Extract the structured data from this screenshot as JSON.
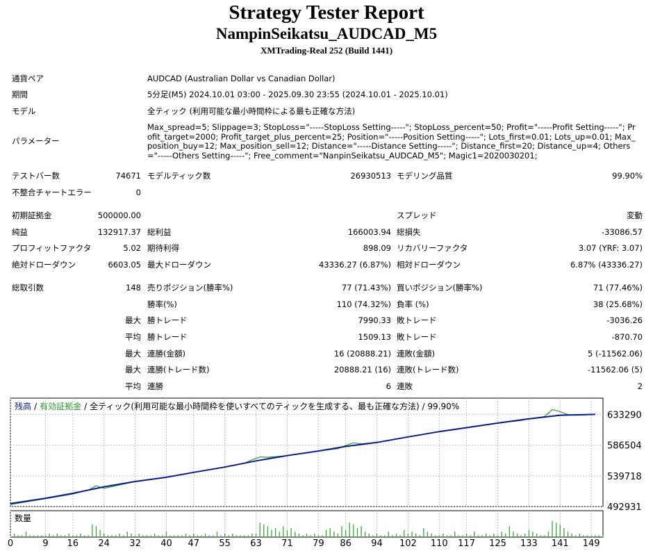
{
  "header": {
    "title": "Strategy Tester Report",
    "subtitle": "NampinSeikatsu_AUDCAD_M5",
    "server": "XMTrading-Real 252 (Build 1441)"
  },
  "info": {
    "symbol_label": "通貨ペア",
    "symbol_value": "AUDCAD (Australian Dollar vs Canadian Dollar)",
    "period_label": "期間",
    "period_value": "5分足(M5) 2024.10.01 03:00 - 2025.09.30 23:55 (2024.10.01 - 2025.10.01)",
    "model_label": "モデル",
    "model_value": "全ティック (利用可能な最小時間枠による最も正確な方法)",
    "params_label": "パラメーター",
    "params_value": "Max_spread=5; Slippage=3; StopLoss=\"-----StopLoss Setting-----\"; StopLoss_percent=50; Profit=\"-----Profit Setting-----\"; Profit_target=2000; Profit_target_plus_percent=25; Position=\"-----Position Setting-----\"; Lots_first=0.01; Lots_up=0.01; Max_position_buy=12; Max_position_sell=12; Distance=\"-----Distance Setting-----\"; Distance_first=20; Distance_up=4; Others=\"-----Others Setting-----\"; Free_comment=\"NanpinSeikatsu_AUDCAD_M5\"; Magic1=2020030201;"
  },
  "stats": {
    "bars_label": "テストバー数",
    "bars_value": "74671",
    "ticks_label": "モデルティック数",
    "ticks_value": "26930513",
    "quality_label": "モデリング品質",
    "quality_value": "99.90%",
    "mismatch_label": "不整合チャートエラー",
    "mismatch_value": "0",
    "deposit_label": "初期証拠金",
    "deposit_value": "500000.00",
    "spread_label": "スプレッド",
    "spread_value": "変動",
    "net_label": "純益",
    "net_value": "132917.37",
    "gross_profit_label": "総利益",
    "gross_profit_value": "166003.94",
    "gross_loss_label": "総損失",
    "gross_loss_value": "-33086.57",
    "pf_label": "プロフィットファクタ",
    "pf_value": "5.02",
    "expected_label": "期待利得",
    "expected_value": "898.09",
    "recovery_label": "リカバリーファクタ",
    "recovery_value": "3.07 (YRF: 3.07)",
    "abs_dd_label": "絶対ドローダウン",
    "abs_dd_value": "6603.05",
    "max_dd_label": "最大ドローダウン",
    "max_dd_value": "43336.27 (6.87%)",
    "rel_dd_label": "相対ドローダウン",
    "rel_dd_value": "6.87% (43336.27)",
    "trades_label": "総取引数",
    "trades_value": "148",
    "short_label": "売りポジション(勝率%)",
    "short_value": "77 (71.43%)",
    "long_label": "買いポジション(勝率%)",
    "long_value": "71 (77.46%)",
    "winrate_label": "勝率(%)",
    "winrate_value": "110 (74.32%)",
    "lossrate_label": "負率 (%)",
    "lossrate_value": "38 (25.68%)",
    "max1": "最大",
    "largest_win_label": "勝トレード",
    "largest_win_value": "7990.33",
    "largest_loss_label": "敗トレード",
    "largest_loss_value": "-3036.26",
    "avg1": "平均",
    "avg_win_label": "勝トレード",
    "avg_win_value": "1509.13",
    "avg_loss_label": "敗トレード",
    "avg_loss_value": "-870.70",
    "max2": "最大",
    "consec_win_amt_label": "連勝(金額)",
    "consec_win_amt_value": "16 (20888.21)",
    "consec_loss_amt_label": "連敗(金額)",
    "consec_loss_amt_value": "5 (-11562.06)",
    "max3": "最大",
    "consec_win_trades_label": "連勝(トレード数)",
    "consec_win_trades_value": "20888.21 (16)",
    "consec_loss_trades_label": "連敗(トレード数)",
    "consec_loss_trades_value": "-11562.06 (5)",
    "avg2": "平均",
    "avg_consec_win_label": "連勝",
    "avg_consec_win_value": "6",
    "avg_consec_loss_label": "連敗",
    "avg_consec_loss_value": "2"
  },
  "chart_data": {
    "type": "line",
    "legend": {
      "balance": "残高",
      "sep1": "/",
      "equity": "有効証拠金",
      "sep2": "/",
      "model": "全ティック(利用可能な最小時間枠を使いすべてのティックを生成する、最も正確な方法) / 99.90%"
    },
    "volume_label": "数量",
    "ylim": [
      492931,
      658000
    ],
    "y_ticks": [
      633290,
      586504,
      539718,
      492931
    ],
    "x_ticks": [
      0,
      9,
      16,
      24,
      32,
      40,
      47,
      55,
      63,
      71,
      79,
      86,
      94,
      102,
      110,
      117,
      125,
      133,
      141,
      149
    ],
    "xlim": [
      0,
      152
    ],
    "colors": {
      "balance": "#0b1a8a",
      "equity": "#2e9a2e",
      "volume": "#3aa63a"
    },
    "series": [
      {
        "name": "残高",
        "x": [
          0,
          9,
          16,
          24,
          32,
          40,
          47,
          55,
          63,
          71,
          79,
          86,
          94,
          102,
          110,
          117,
          125,
          133,
          141,
          150
        ],
        "values": [
          497500,
          505500,
          513000,
          523000,
          531000,
          537500,
          545000,
          553000,
          562500,
          570500,
          577500,
          584500,
          590500,
          599000,
          607000,
          613000,
          620000,
          626500,
          632000,
          633290
        ]
      },
      {
        "name": "有効証拠金",
        "x": [
          0,
          9,
          16,
          20,
          22,
          24,
          32,
          40,
          47,
          55,
          60,
          62,
          64,
          66,
          71,
          79,
          84,
          86,
          88,
          90,
          94,
          102,
          110,
          117,
          125,
          131,
          133,
          137,
          139,
          141,
          143,
          145,
          147,
          150
        ],
        "values": [
          496000,
          505000,
          512000,
          518000,
          524500,
          520500,
          531000,
          537500,
          545000,
          553000,
          559000,
          564000,
          568500,
          568000,
          570500,
          577500,
          581000,
          586000,
          590000,
          588500,
          590500,
          599000,
          607000,
          613000,
          620000,
          624000,
          626500,
          630000,
          640500,
          637500,
          633000,
          632000,
          632500,
          633290
        ]
      }
    ],
    "volume": [
      2,
      1,
      1,
      3,
      1,
      1,
      1,
      1,
      1,
      2,
      1,
      2,
      1,
      1,
      2,
      1,
      1,
      2,
      1,
      1,
      7,
      6,
      4,
      2,
      1,
      1,
      1,
      2,
      1,
      3,
      2,
      1,
      2,
      1,
      1,
      1,
      2,
      1,
      1,
      3,
      1,
      1,
      1,
      1,
      2,
      1,
      2,
      1,
      1,
      2,
      1,
      1,
      3,
      1,
      2,
      1,
      2,
      1,
      1,
      1,
      1,
      2,
      2,
      8,
      7,
      6,
      4,
      5,
      3,
      6,
      4,
      5,
      3,
      2,
      1,
      2,
      1,
      2,
      1,
      1,
      4,
      5,
      3,
      2,
      6,
      4,
      8,
      7,
      5,
      6,
      3,
      2,
      1,
      2,
      1,
      1,
      3,
      1,
      2,
      1,
      4,
      2,
      3,
      2,
      1,
      5,
      3,
      2,
      1,
      1,
      2,
      1,
      1,
      3,
      1,
      1,
      2,
      1,
      3,
      1,
      1,
      2,
      1,
      2,
      1,
      3,
      2,
      6,
      3,
      2,
      1,
      2,
      4,
      3,
      2,
      1,
      1,
      3,
      9,
      8,
      7,
      5,
      3,
      2,
      1,
      2,
      1,
      1,
      1,
      1,
      1,
      1
    ]
  }
}
